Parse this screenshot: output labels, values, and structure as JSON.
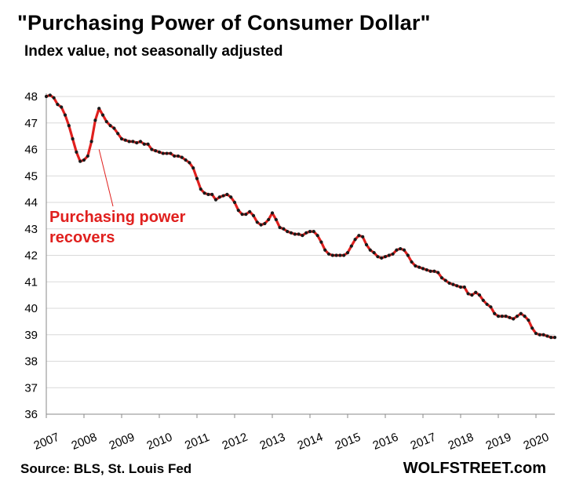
{
  "chart_data": {
    "type": "line",
    "title": "\"Purchasing Power of Consumer Dollar\"",
    "subtitle": "Index value, not seasonally adjusted",
    "xlabel": "",
    "ylabel": "",
    "xlim": [
      2007,
      2020.5
    ],
    "ylim": [
      36,
      48
    ],
    "y_ticks": [
      36,
      37,
      38,
      39,
      40,
      41,
      42,
      43,
      44,
      45,
      46,
      47,
      48
    ],
    "x_ticks": [
      2007,
      2008,
      2009,
      2010,
      2011,
      2012,
      2013,
      2014,
      2015,
      2016,
      2017,
      2018,
      2019,
      2020
    ],
    "grid": true,
    "line_color": "#e0201e",
    "marker_color": "#1a1a1a",
    "series": [
      {
        "name": "Purchasing Power of Consumer Dollar",
        "points": [
          [
            2007.0,
            48.0
          ],
          [
            2007.1,
            48.05
          ],
          [
            2007.2,
            47.95
          ],
          [
            2007.3,
            47.7
          ],
          [
            2007.4,
            47.6
          ],
          [
            2007.5,
            47.3
          ],
          [
            2007.6,
            46.9
          ],
          [
            2007.7,
            46.4
          ],
          [
            2007.8,
            45.9
          ],
          [
            2007.9,
            45.55
          ],
          [
            2008.0,
            45.6
          ],
          [
            2008.1,
            45.75
          ],
          [
            2008.2,
            46.3
          ],
          [
            2008.3,
            47.1
          ],
          [
            2008.4,
            47.55
          ],
          [
            2008.5,
            47.3
          ],
          [
            2008.6,
            47.05
          ],
          [
            2008.7,
            46.9
          ],
          [
            2008.8,
            46.8
          ],
          [
            2008.9,
            46.6
          ],
          [
            2009.0,
            46.4
          ],
          [
            2009.1,
            46.35
          ],
          [
            2009.2,
            46.3
          ],
          [
            2009.3,
            46.3
          ],
          [
            2009.4,
            46.25
          ],
          [
            2009.5,
            46.3
          ],
          [
            2009.6,
            46.2
          ],
          [
            2009.7,
            46.2
          ],
          [
            2009.8,
            46.0
          ],
          [
            2009.9,
            45.95
          ],
          [
            2010.0,
            45.9
          ],
          [
            2010.1,
            45.85
          ],
          [
            2010.2,
            45.85
          ],
          [
            2010.3,
            45.85
          ],
          [
            2010.4,
            45.75
          ],
          [
            2010.5,
            45.75
          ],
          [
            2010.6,
            45.7
          ],
          [
            2010.7,
            45.6
          ],
          [
            2010.8,
            45.5
          ],
          [
            2010.9,
            45.3
          ],
          [
            2011.0,
            44.9
          ],
          [
            2011.1,
            44.5
          ],
          [
            2011.2,
            44.35
          ],
          [
            2011.3,
            44.3
          ],
          [
            2011.4,
            44.3
          ],
          [
            2011.5,
            44.1
          ],
          [
            2011.6,
            44.2
          ],
          [
            2011.7,
            44.25
          ],
          [
            2011.8,
            44.3
          ],
          [
            2011.9,
            44.2
          ],
          [
            2012.0,
            44.0
          ],
          [
            2012.1,
            43.7
          ],
          [
            2012.2,
            43.55
          ],
          [
            2012.3,
            43.55
          ],
          [
            2012.4,
            43.65
          ],
          [
            2012.5,
            43.5
          ],
          [
            2012.6,
            43.25
          ],
          [
            2012.7,
            43.15
          ],
          [
            2012.8,
            43.2
          ],
          [
            2012.9,
            43.35
          ],
          [
            2013.0,
            43.6
          ],
          [
            2013.1,
            43.35
          ],
          [
            2013.2,
            43.05
          ],
          [
            2013.3,
            43.0
          ],
          [
            2013.4,
            42.9
          ],
          [
            2013.5,
            42.85
          ],
          [
            2013.6,
            42.8
          ],
          [
            2013.7,
            42.8
          ],
          [
            2013.8,
            42.75
          ],
          [
            2013.9,
            42.85
          ],
          [
            2014.0,
            42.9
          ],
          [
            2014.1,
            42.9
          ],
          [
            2014.2,
            42.75
          ],
          [
            2014.3,
            42.5
          ],
          [
            2014.4,
            42.2
          ],
          [
            2014.5,
            42.05
          ],
          [
            2014.6,
            42.0
          ],
          [
            2014.7,
            42.0
          ],
          [
            2014.8,
            42.0
          ],
          [
            2014.9,
            42.0
          ],
          [
            2015.0,
            42.1
          ],
          [
            2015.1,
            42.35
          ],
          [
            2015.2,
            42.6
          ],
          [
            2015.3,
            42.75
          ],
          [
            2015.4,
            42.7
          ],
          [
            2015.5,
            42.4
          ],
          [
            2015.6,
            42.2
          ],
          [
            2015.7,
            42.1
          ],
          [
            2015.8,
            41.95
          ],
          [
            2015.9,
            41.9
          ],
          [
            2016.0,
            41.95
          ],
          [
            2016.1,
            42.0
          ],
          [
            2016.2,
            42.05
          ],
          [
            2016.3,
            42.2
          ],
          [
            2016.4,
            42.25
          ],
          [
            2016.5,
            42.2
          ],
          [
            2016.6,
            42.0
          ],
          [
            2016.7,
            41.75
          ],
          [
            2016.8,
            41.6
          ],
          [
            2016.9,
            41.55
          ],
          [
            2017.0,
            41.5
          ],
          [
            2017.1,
            41.45
          ],
          [
            2017.2,
            41.4
          ],
          [
            2017.3,
            41.4
          ],
          [
            2017.4,
            41.35
          ],
          [
            2017.5,
            41.15
          ],
          [
            2017.6,
            41.05
          ],
          [
            2017.7,
            40.95
          ],
          [
            2017.8,
            40.9
          ],
          [
            2017.9,
            40.85
          ],
          [
            2018.0,
            40.8
          ],
          [
            2018.1,
            40.8
          ],
          [
            2018.2,
            40.55
          ],
          [
            2018.3,
            40.5
          ],
          [
            2018.4,
            40.6
          ],
          [
            2018.5,
            40.5
          ],
          [
            2018.6,
            40.3
          ],
          [
            2018.7,
            40.15
          ],
          [
            2018.8,
            40.05
          ],
          [
            2018.9,
            39.8
          ],
          [
            2019.0,
            39.7
          ],
          [
            2019.1,
            39.7
          ],
          [
            2019.2,
            39.7
          ],
          [
            2019.3,
            39.65
          ],
          [
            2019.4,
            39.6
          ],
          [
            2019.5,
            39.7
          ],
          [
            2019.6,
            39.8
          ],
          [
            2019.7,
            39.7
          ],
          [
            2019.8,
            39.55
          ],
          [
            2019.9,
            39.25
          ],
          [
            2020.0,
            39.05
          ],
          [
            2020.1,
            39.0
          ],
          [
            2020.2,
            39.0
          ],
          [
            2020.3,
            38.95
          ],
          [
            2020.4,
            38.9
          ],
          [
            2020.5,
            38.9
          ]
        ]
      }
    ],
    "annotation": {
      "lines": [
        "Purchasing power",
        "recovers"
      ],
      "points_to": [
        2008.4,
        46.0
      ],
      "color": "#e0201e"
    }
  },
  "source": "Source: BLS, St. Louis Fed",
  "brand": "WOLFSTREET.com"
}
